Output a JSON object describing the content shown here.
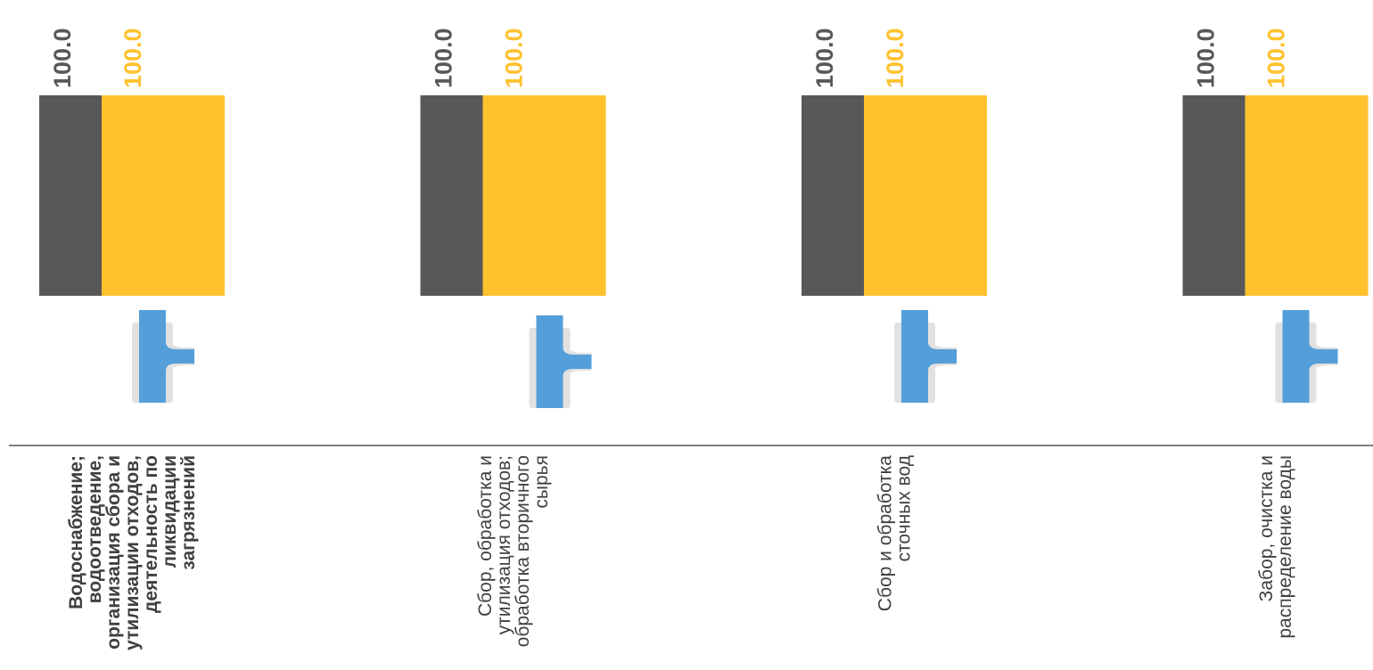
{
  "chart_data": {
    "type": "bar",
    "categories": [
      [
        "Водоснабжение;",
        "водоотведение,",
        "организация сбора и",
        "утилизации отходов,",
        "деятельность по",
        "ликвидации",
        "загрязнений"
      ],
      [
        "Сбор, обработка и",
        "утилизация отходов;",
        "обработка вторичного",
        "сырья"
      ],
      [
        "Сбор и обработка",
        "сточных вод"
      ],
      [
        "Забор, очистка и",
        "распределение воды"
      ]
    ],
    "series": [
      {
        "color": "#585858",
        "values": [
          100.0,
          100.0,
          100.0,
          100.0
        ]
      },
      {
        "color": "#FFC22E",
        "values": [
          100.0,
          100.0,
          100.0,
          100.0
        ]
      }
    ],
    "ylim": [
      0,
      100
    ],
    "value_labels": [
      "100.0",
      "100.0"
    ],
    "icon": "water-pipe-tee-icon",
    "axis_color": "#808080",
    "pipe_color": "#549FD9"
  }
}
